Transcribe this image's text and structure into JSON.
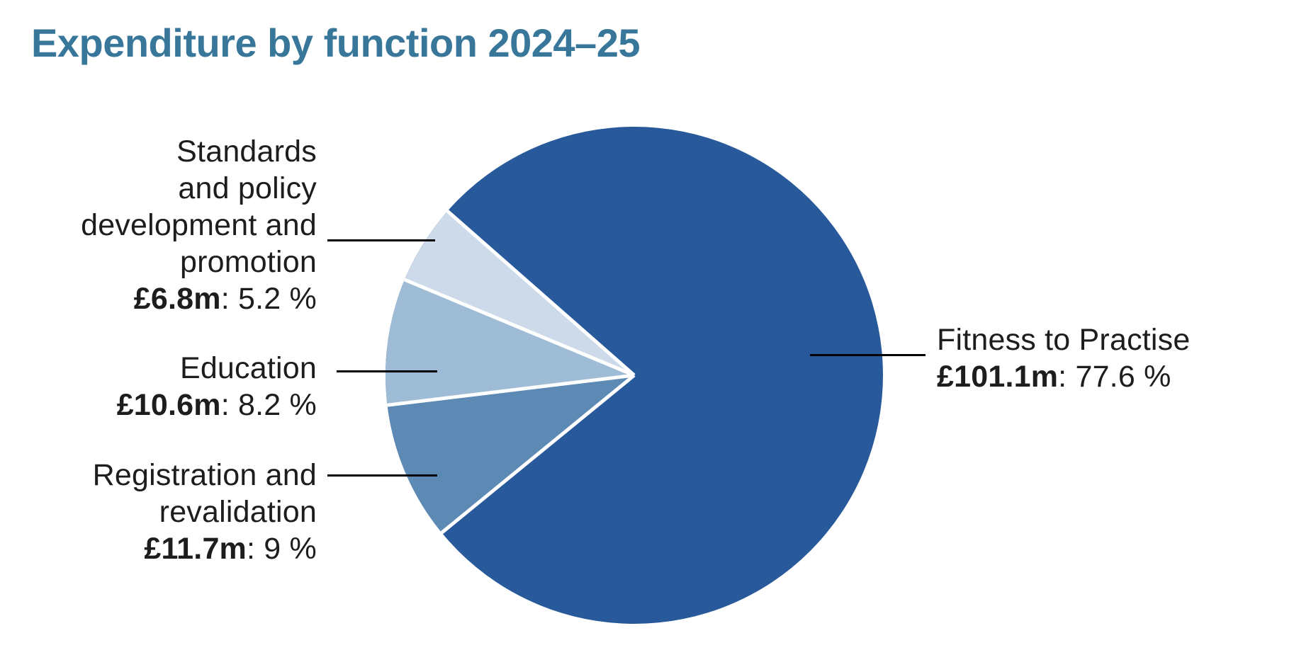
{
  "chart_data": {
    "type": "pie",
    "title": "Expenditure by function 2024–25",
    "legend_position": "none",
    "start_angle_deg": 140.7,
    "separator_color": "#FFFFFF",
    "separator_width": 5,
    "title_color": "#38779A",
    "slices": [
      {
        "label": "Fitness to Practise",
        "amount": "£101.1m",
        "percent_label": "77.6 %",
        "value": 77.6,
        "color": "#27599B"
      },
      {
        "label": "Registration and revalidation",
        "amount": "£11.7m",
        "percent_label": "9 %",
        "value": 9,
        "color": "#5D89B5"
      },
      {
        "label": "Education",
        "amount": "£10.6m",
        "percent_label": "8.2 %",
        "value": 8.2,
        "color": "#9FBCD6"
      },
      {
        "label": "Standards and policy development and promotion",
        "amount": "£6.8m",
        "percent_label": "5.2 %",
        "value": 5.2,
        "color": "#CCDAEA"
      }
    ]
  },
  "callouts": {
    "standards": {
      "lines": [
        "Standards",
        "and policy",
        "development and",
        "promotion"
      ],
      "amount": "£6.8m",
      "rest": ": 5.2 %"
    },
    "education": {
      "lines": [
        "Education"
      ],
      "amount": "£10.6m",
      "rest": ": 8.2 %"
    },
    "registration": {
      "lines": [
        "Registration and",
        "revalidation"
      ],
      "amount": "£11.7m",
      "rest": ": 9 %"
    },
    "fitness": {
      "lines": [
        "Fitness to Practise"
      ],
      "amount": "£101.1m",
      "rest": ": 77.6 %"
    }
  }
}
